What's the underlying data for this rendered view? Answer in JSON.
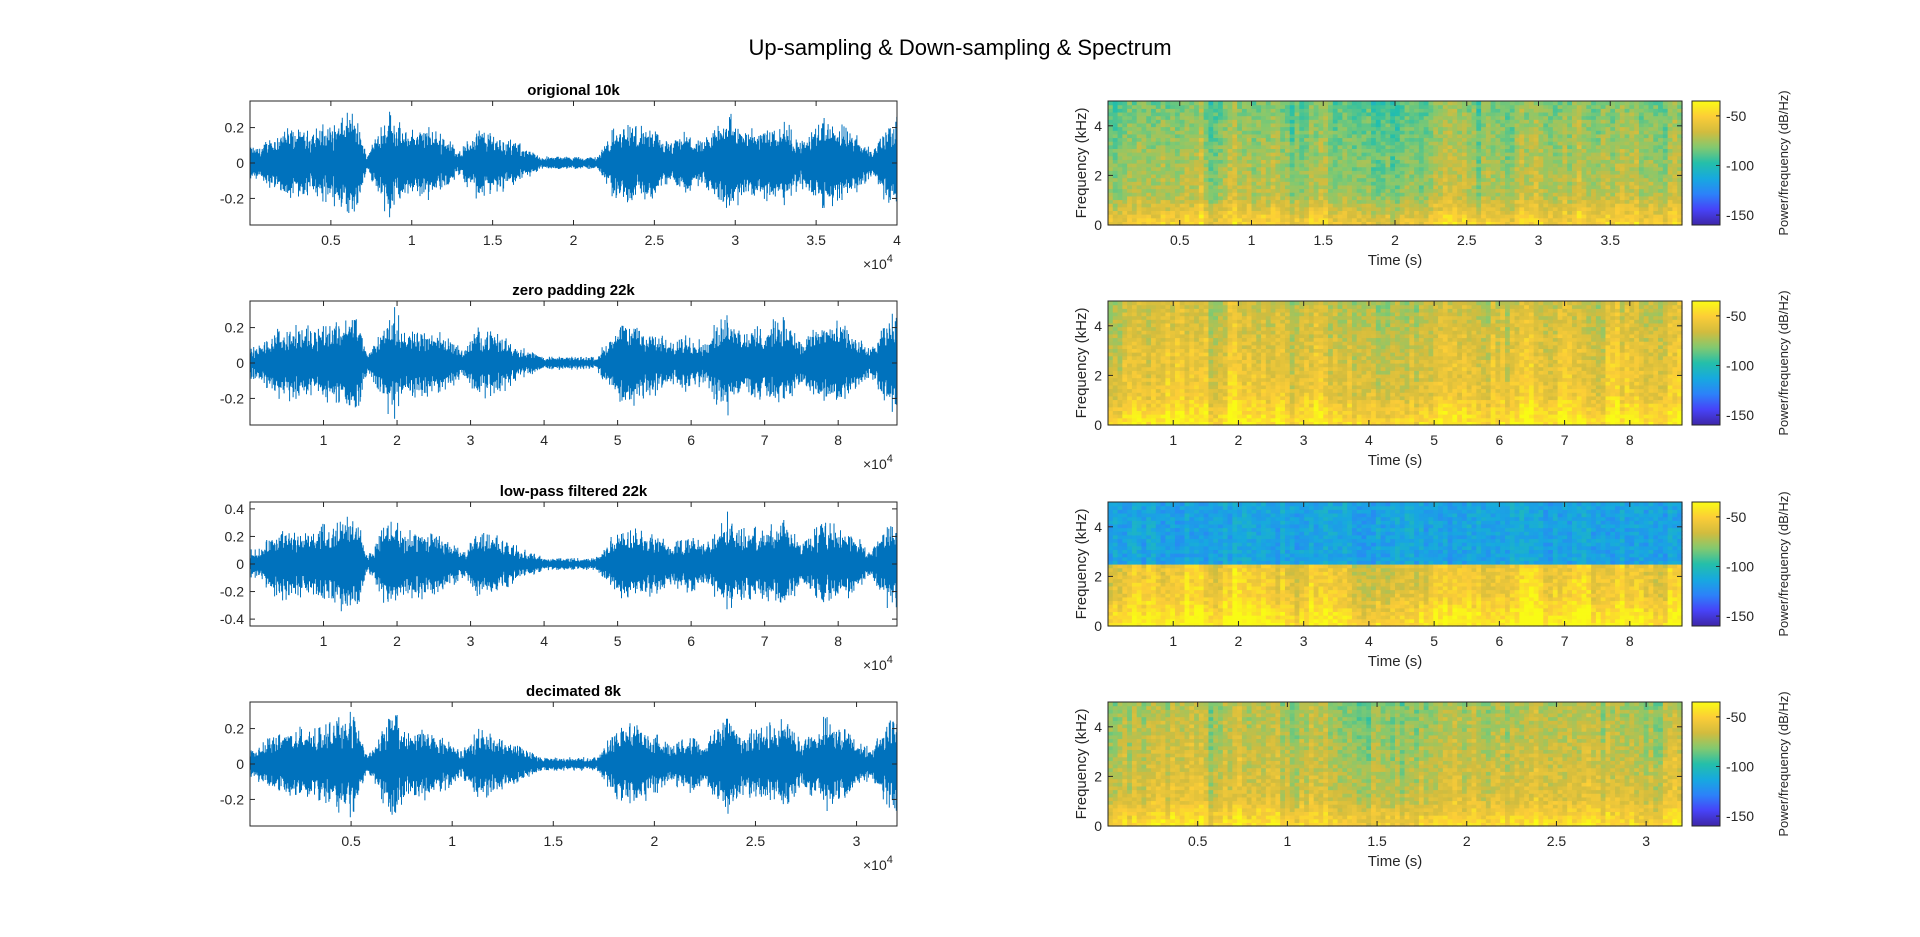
{
  "figure": {
    "title": "Up-sampling & Down-sampling & Spectrum"
  },
  "colors": {
    "waveform": "#0072BD",
    "axis": "#262626",
    "colormap": [
      "#3E26A8",
      "#4743F8",
      "#2C82F9",
      "#17A9DF",
      "#24BFAA",
      "#82C970",
      "#D2BC3E",
      "#FCCD37",
      "#F9FB15"
    ]
  },
  "chart_data": [
    {
      "type": "line",
      "title": "origional 10k",
      "xlim": [
        0,
        40000
      ],
      "ylim": [
        -0.35,
        0.35
      ],
      "xticks": [
        5000,
        10000,
        15000,
        20000,
        25000,
        30000,
        35000,
        40000
      ],
      "xtick_labels": [
        "0.5",
        "1",
        "1.5",
        "2",
        "2.5",
        "3",
        "3.5",
        "4"
      ],
      "yticks": [
        -0.2,
        0,
        0.2
      ],
      "ytick_labels": [
        "-0.2",
        "0",
        "0.2"
      ],
      "exponent_label": "×10",
      "exponent_power": "4",
      "envelope": [
        {
          "x": 500,
          "amp": 0.1
        },
        {
          "x": 2000,
          "amp": 0.22
        },
        {
          "x": 3500,
          "amp": 0.2
        },
        {
          "x": 5000,
          "amp": 0.25
        },
        {
          "x": 6500,
          "amp": 0.32
        },
        {
          "x": 7200,
          "amp": 0.05
        },
        {
          "x": 8500,
          "amp": 0.35
        },
        {
          "x": 9500,
          "amp": 0.2
        },
        {
          "x": 10800,
          "amp": 0.23
        },
        {
          "x": 12000,
          "amp": 0.18
        },
        {
          "x": 13000,
          "amp": 0.08
        },
        {
          "x": 14000,
          "amp": 0.22
        },
        {
          "x": 15500,
          "amp": 0.18
        },
        {
          "x": 17000,
          "amp": 0.1
        },
        {
          "x": 18000,
          "amp": 0.04
        },
        {
          "x": 20000,
          "amp": 0.04
        },
        {
          "x": 21500,
          "amp": 0.04
        },
        {
          "x": 22500,
          "amp": 0.22
        },
        {
          "x": 23500,
          "amp": 0.26
        },
        {
          "x": 25000,
          "amp": 0.2
        },
        {
          "x": 26000,
          "amp": 0.12
        },
        {
          "x": 27000,
          "amp": 0.2
        },
        {
          "x": 28000,
          "amp": 0.12
        },
        {
          "x": 29500,
          "amp": 0.35
        },
        {
          "x": 30500,
          "amp": 0.2
        },
        {
          "x": 31800,
          "amp": 0.24
        },
        {
          "x": 33000,
          "amp": 0.28
        },
        {
          "x": 34000,
          "amp": 0.14
        },
        {
          "x": 35500,
          "amp": 0.28
        },
        {
          "x": 37000,
          "amp": 0.22
        },
        {
          "x": 38500,
          "amp": 0.08
        },
        {
          "x": 39500,
          "amp": 0.3
        }
      ]
    },
    {
      "type": "line",
      "title": "zero padding 22k",
      "xlim": [
        0,
        88000
      ],
      "ylim": [
        -0.35,
        0.35
      ],
      "xticks": [
        10000,
        20000,
        30000,
        40000,
        50000,
        60000,
        70000,
        80000
      ],
      "xtick_labels": [
        "1",
        "2",
        "3",
        "4",
        "5",
        "6",
        "7",
        "8"
      ],
      "yticks": [
        -0.2,
        0,
        0.2
      ],
      "ytick_labels": [
        "-0.2",
        "0",
        "0.2"
      ],
      "exponent_label": "×10",
      "exponent_power": "4",
      "envelope": [
        {
          "x": 1000,
          "amp": 0.1
        },
        {
          "x": 4000,
          "amp": 0.22
        },
        {
          "x": 8000,
          "amp": 0.22
        },
        {
          "x": 11000,
          "amp": 0.26
        },
        {
          "x": 14500,
          "amp": 0.32
        },
        {
          "x": 16000,
          "amp": 0.05
        },
        {
          "x": 19500,
          "amp": 0.35
        },
        {
          "x": 21000,
          "amp": 0.2
        },
        {
          "x": 24000,
          "amp": 0.22
        },
        {
          "x": 27000,
          "amp": 0.16
        },
        {
          "x": 29000,
          "amp": 0.08
        },
        {
          "x": 31000,
          "amp": 0.22
        },
        {
          "x": 34000,
          "amp": 0.18
        },
        {
          "x": 37000,
          "amp": 0.1
        },
        {
          "x": 40000,
          "amp": 0.04
        },
        {
          "x": 44000,
          "amp": 0.04
        },
        {
          "x": 47000,
          "amp": 0.04
        },
        {
          "x": 50000,
          "amp": 0.22
        },
        {
          "x": 52000,
          "amp": 0.26
        },
        {
          "x": 55000,
          "amp": 0.2
        },
        {
          "x": 57500,
          "amp": 0.12
        },
        {
          "x": 59500,
          "amp": 0.2
        },
        {
          "x": 62000,
          "amp": 0.12
        },
        {
          "x": 64500,
          "amp": 0.35
        },
        {
          "x": 67000,
          "amp": 0.2
        },
        {
          "x": 70000,
          "amp": 0.24
        },
        {
          "x": 73000,
          "amp": 0.28
        },
        {
          "x": 75000,
          "amp": 0.14
        },
        {
          "x": 78000,
          "amp": 0.28
        },
        {
          "x": 81500,
          "amp": 0.22
        },
        {
          "x": 84500,
          "amp": 0.08
        },
        {
          "x": 87000,
          "amp": 0.3
        }
      ]
    },
    {
      "type": "line",
      "title": "low-pass filtered 22k",
      "xlim": [
        0,
        88000
      ],
      "ylim": [
        -0.45,
        0.45
      ],
      "xticks": [
        10000,
        20000,
        30000,
        40000,
        50000,
        60000,
        70000,
        80000
      ],
      "xtick_labels": [
        "1",
        "2",
        "3",
        "4",
        "5",
        "6",
        "7",
        "8"
      ],
      "yticks": [
        -0.4,
        -0.2,
        0,
        0.2,
        0.4
      ],
      "ytick_labels": [
        "-0.4",
        "-0.2",
        "0",
        "0.2",
        "0.4"
      ],
      "exponent_label": "×10",
      "exponent_power": "4",
      "envelope": [
        {
          "x": 1000,
          "amp": 0.12
        },
        {
          "x": 4000,
          "amp": 0.28
        },
        {
          "x": 8000,
          "amp": 0.26
        },
        {
          "x": 11000,
          "amp": 0.32
        },
        {
          "x": 14500,
          "amp": 0.42
        },
        {
          "x": 16000,
          "amp": 0.06
        },
        {
          "x": 19500,
          "amp": 0.43
        },
        {
          "x": 21000,
          "amp": 0.25
        },
        {
          "x": 24000,
          "amp": 0.28
        },
        {
          "x": 27000,
          "amp": 0.2
        },
        {
          "x": 29000,
          "amp": 0.1
        },
        {
          "x": 31000,
          "amp": 0.28
        },
        {
          "x": 34000,
          "amp": 0.22
        },
        {
          "x": 37000,
          "amp": 0.12
        },
        {
          "x": 40000,
          "amp": 0.05
        },
        {
          "x": 44000,
          "amp": 0.05
        },
        {
          "x": 47000,
          "amp": 0.05
        },
        {
          "x": 50000,
          "amp": 0.28
        },
        {
          "x": 52000,
          "amp": 0.32
        },
        {
          "x": 55000,
          "amp": 0.26
        },
        {
          "x": 57500,
          "amp": 0.15
        },
        {
          "x": 59500,
          "amp": 0.26
        },
        {
          "x": 62000,
          "amp": 0.15
        },
        {
          "x": 64500,
          "amp": 0.43
        },
        {
          "x": 67000,
          "amp": 0.26
        },
        {
          "x": 70000,
          "amp": 0.3
        },
        {
          "x": 73000,
          "amp": 0.34
        },
        {
          "x": 75000,
          "amp": 0.18
        },
        {
          "x": 78000,
          "amp": 0.34
        },
        {
          "x": 81500,
          "amp": 0.28
        },
        {
          "x": 84500,
          "amp": 0.1
        },
        {
          "x": 87000,
          "amp": 0.38
        }
      ]
    },
    {
      "type": "line",
      "title": "decimated 8k",
      "xlim": [
        0,
        32000
      ],
      "ylim": [
        -0.35,
        0.35
      ],
      "xticks": [
        5000,
        10000,
        15000,
        20000,
        25000,
        30000
      ],
      "xtick_labels": [
        "0.5",
        "1",
        "1.5",
        "2",
        "2.5",
        "3"
      ],
      "yticks": [
        -0.2,
        0,
        0.2
      ],
      "ytick_labels": [
        "-0.2",
        "0",
        "0.2"
      ],
      "exponent_label": "×10",
      "exponent_power": "4",
      "envelope": [
        {
          "x": 400,
          "amp": 0.1
        },
        {
          "x": 1500,
          "amp": 0.22
        },
        {
          "x": 3000,
          "amp": 0.22
        },
        {
          "x": 4000,
          "amp": 0.26
        },
        {
          "x": 5200,
          "amp": 0.32
        },
        {
          "x": 5800,
          "amp": 0.05
        },
        {
          "x": 7100,
          "amp": 0.35
        },
        {
          "x": 7700,
          "amp": 0.2
        },
        {
          "x": 8700,
          "amp": 0.22
        },
        {
          "x": 9800,
          "amp": 0.16
        },
        {
          "x": 10500,
          "amp": 0.08
        },
        {
          "x": 11300,
          "amp": 0.22
        },
        {
          "x": 12400,
          "amp": 0.18
        },
        {
          "x": 13500,
          "amp": 0.1
        },
        {
          "x": 14500,
          "amp": 0.04
        },
        {
          "x": 16000,
          "amp": 0.04
        },
        {
          "x": 17100,
          "amp": 0.04
        },
        {
          "x": 18200,
          "amp": 0.22
        },
        {
          "x": 19000,
          "amp": 0.26
        },
        {
          "x": 20000,
          "amp": 0.2
        },
        {
          "x": 20900,
          "amp": 0.12
        },
        {
          "x": 21600,
          "amp": 0.2
        },
        {
          "x": 22500,
          "amp": 0.12
        },
        {
          "x": 23500,
          "amp": 0.35
        },
        {
          "x": 24400,
          "amp": 0.2
        },
        {
          "x": 25500,
          "amp": 0.24
        },
        {
          "x": 26600,
          "amp": 0.28
        },
        {
          "x": 27300,
          "amp": 0.14
        },
        {
          "x": 28400,
          "amp": 0.28
        },
        {
          "x": 29600,
          "amp": 0.22
        },
        {
          "x": 30700,
          "amp": 0.08
        },
        {
          "x": 31600,
          "amp": 0.3
        }
      ]
    },
    {
      "type": "heatmap",
      "xlabel": "Time (s)",
      "ylabel": "Frequency (kHz)",
      "colorbar_label": "Power/frequency (dB/Hz)",
      "xlim": [
        0,
        4.0
      ],
      "ylim": [
        0,
        5
      ],
      "clim": [
        -160,
        -35
      ],
      "xticks": [
        0.5,
        1,
        1.5,
        2,
        2.5,
        3,
        3.5
      ],
      "xtick_labels": [
        "0.5",
        "1",
        "1.5",
        "2",
        "2.5",
        "3",
        "3.5"
      ],
      "yticks": [
        0,
        2,
        4
      ],
      "ytick_labels": [
        "0",
        "2",
        "4"
      ],
      "cticks": [
        -50,
        -100,
        -150
      ],
      "ctick_labels": [
        "-50",
        "-100",
        "-150"
      ],
      "base_db": -78,
      "lowband_boost_db": 18,
      "cutoff_khz": null
    },
    {
      "type": "heatmap",
      "xlabel": "Time (s)",
      "ylabel": "Frequency (kHz)",
      "colorbar_label": "Power/frequency (dB/Hz)",
      "xlim": [
        0,
        8.8
      ],
      "ylim": [
        0,
        5
      ],
      "clim": [
        -160,
        -35
      ],
      "xticks": [
        1,
        2,
        3,
        4,
        5,
        6,
        7,
        8
      ],
      "xtick_labels": [
        "1",
        "2",
        "3",
        "4",
        "5",
        "6",
        "7",
        "8"
      ],
      "yticks": [
        0,
        2,
        4
      ],
      "ytick_labels": [
        "0",
        "2",
        "4"
      ],
      "cticks": [
        -50,
        -100,
        -150
      ],
      "ctick_labels": [
        "-50",
        "-100",
        "-150"
      ],
      "base_db": -62,
      "lowband_boost_db": 12,
      "cutoff_khz": null
    },
    {
      "type": "heatmap",
      "xlabel": "Time (s)",
      "ylabel": "Frequency (kHz)",
      "colorbar_label": "Power/frequency (dB/Hz)",
      "xlim": [
        0,
        8.8
      ],
      "ylim": [
        0,
        5
      ],
      "clim": [
        -160,
        -35
      ],
      "xticks": [
        1,
        2,
        3,
        4,
        5,
        6,
        7,
        8
      ],
      "xtick_labels": [
        "1",
        "2",
        "3",
        "4",
        "5",
        "6",
        "7",
        "8"
      ],
      "yticks": [
        0,
        2,
        4
      ],
      "ytick_labels": [
        "0",
        "2",
        "4"
      ],
      "cticks": [
        -50,
        -100,
        -150
      ],
      "ctick_labels": [
        "-50",
        "-100",
        "-150"
      ],
      "base_db": -62,
      "lowband_boost_db": 12,
      "cutoff_khz": 2.5,
      "above_cutoff_db": -115
    },
    {
      "type": "heatmap",
      "xlabel": "Time (s)",
      "ylabel": "Frequency (kHz)",
      "colorbar_label": "Power/frequency (dB/Hz)",
      "xlim": [
        0,
        3.2
      ],
      "ylim": [
        0,
        5
      ],
      "clim": [
        -160,
        -35
      ],
      "xticks": [
        0.5,
        1,
        1.5,
        2,
        2.5,
        3
      ],
      "xtick_labels": [
        "0.5",
        "1",
        "1.5",
        "2",
        "2.5",
        "3"
      ],
      "yticks": [
        0,
        2,
        4
      ],
      "ytick_labels": [
        "0",
        "2",
        "4"
      ],
      "cticks": [
        -50,
        -100,
        -150
      ],
      "ctick_labels": [
        "-50",
        "-100",
        "-150"
      ],
      "base_db": -70,
      "lowband_boost_db": 15,
      "cutoff_khz": null
    }
  ]
}
